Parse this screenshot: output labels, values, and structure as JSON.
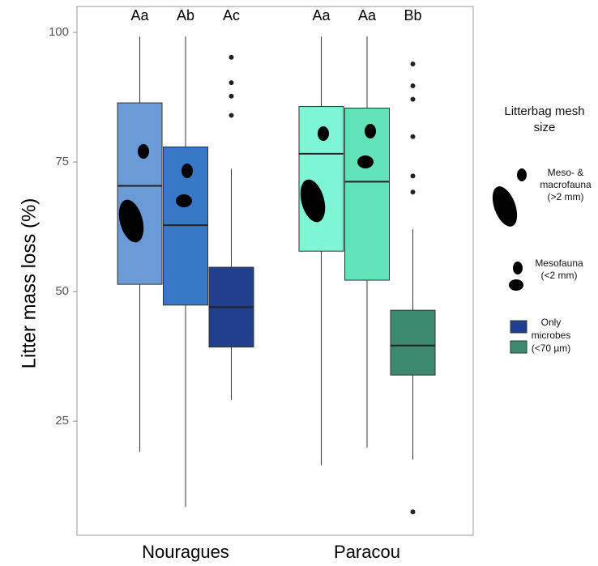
{
  "chart_data": {
    "type": "box",
    "ylabel": "Litter mass loss (%)",
    "categories": [
      "Nouragues",
      "Paracou"
    ],
    "ylim": [
      3,
      105
    ],
    "yticks": [
      25,
      50,
      75,
      100
    ],
    "grid": false,
    "legend_title": "Litterbag mesh size",
    "series": [
      {
        "name": "Meso- & macrofauna (>2 mm)",
        "colors": [
          "#6b9bd6",
          "#7ef5d4"
        ],
        "boxes": [
          {
            "label": "Aa",
            "whislo": 19.1,
            "q1": 51.4,
            "med": 70.4,
            "q3": 86.4,
            "whishi": 99.2,
            "fliers": []
          },
          {
            "label": "Aa",
            "whislo": 16.5,
            "q1": 57.8,
            "med": 76.6,
            "q3": 85.7,
            "whishi": 99.2,
            "fliers": []
          }
        ]
      },
      {
        "name": "Mesofauna (<2 mm)",
        "colors": [
          "#3779c6",
          "#62e2b8"
        ],
        "boxes": [
          {
            "label": "Ab",
            "whislo": 8.4,
            "q1": 47.4,
            "med": 62.8,
            "q3": 77.9,
            "whishi": 99.2,
            "fliers": []
          },
          {
            "label": "Aa",
            "whislo": 19.9,
            "q1": 52.2,
            "med": 71.2,
            "q3": 85.4,
            "whishi": 99.2,
            "fliers": []
          }
        ]
      },
      {
        "name": "Only microbes (<70 µm)",
        "colors": [
          "#213f8e",
          "#3b8a6f"
        ],
        "boxes": [
          {
            "label": "Ac",
            "whislo": 29.1,
            "q1": 39.3,
            "med": 47.0,
            "q3": 54.7,
            "whishi": 73.7,
            "fliers": [
              95.2,
              90.3,
              87.7,
              84.0
            ]
          },
          {
            "label": "Bb",
            "whislo": 17.6,
            "q1": 33.9,
            "med": 39.6,
            "q3": 46.4,
            "whishi": 62.0,
            "fliers": [
              93.9,
              89.7,
              87.1,
              79.9,
              72.3,
              69.2,
              7.5
            ]
          }
        ]
      }
    ]
  }
}
